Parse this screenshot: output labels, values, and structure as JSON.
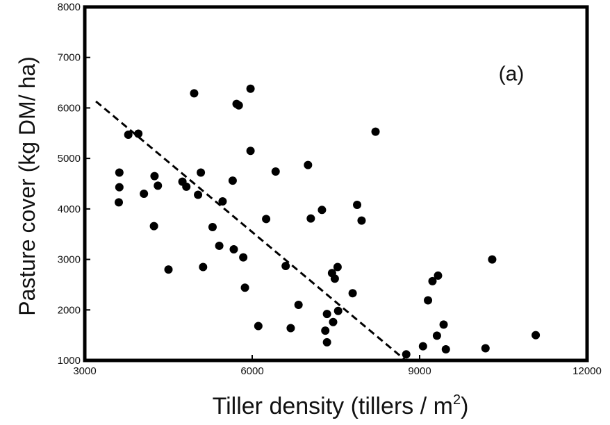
{
  "chart_data": {
    "type": "scatter",
    "panel_label": "(a)",
    "xlabel": "Tiller density (tillers / m",
    "xlabel_superscript": "2",
    "xlabel_suffix": ")",
    "ylabel": "Pasture cover (kg DM/ ha)",
    "xlim": [
      3000,
      12000
    ],
    "ylim": [
      1000,
      8000
    ],
    "x_ticks": [
      3000,
      6000,
      9000,
      12000
    ],
    "y_ticks": [
      1000,
      2000,
      3000,
      4000,
      5000,
      6000,
      7000,
      8000
    ],
    "x_tick_labels": [
      "3000",
      "6000",
      "9000",
      "12000"
    ],
    "y_tick_labels": [
      "1000",
      "2000",
      "3000",
      "4000",
      "5000",
      "6000",
      "7000",
      "8000"
    ],
    "grid": false,
    "points": [
      {
        "x": 3620,
        "y": 4720
      },
      {
        "x": 3620,
        "y": 4430
      },
      {
        "x": 3610,
        "y": 4130
      },
      {
        "x": 3780,
        "y": 5470
      },
      {
        "x": 3960,
        "y": 5490
      },
      {
        "x": 4060,
        "y": 4300
      },
      {
        "x": 4250,
        "y": 4650
      },
      {
        "x": 4310,
        "y": 4460
      },
      {
        "x": 4240,
        "y": 3660
      },
      {
        "x": 4500,
        "y": 2800
      },
      {
        "x": 4750,
        "y": 4540
      },
      {
        "x": 4820,
        "y": 4440
      },
      {
        "x": 4960,
        "y": 6290
      },
      {
        "x": 5030,
        "y": 4280
      },
      {
        "x": 5080,
        "y": 4720
      },
      {
        "x": 5120,
        "y": 2850
      },
      {
        "x": 5290,
        "y": 3640
      },
      {
        "x": 5410,
        "y": 3270
      },
      {
        "x": 5470,
        "y": 4150
      },
      {
        "x": 5650,
        "y": 4560
      },
      {
        "x": 5670,
        "y": 3200
      },
      {
        "x": 5840,
        "y": 3040
      },
      {
        "x": 5870,
        "y": 2440
      },
      {
        "x": 5720,
        "y": 6080
      },
      {
        "x": 5760,
        "y": 6050
      },
      {
        "x": 5970,
        "y": 6380
      },
      {
        "x": 5970,
        "y": 5150
      },
      {
        "x": 6110,
        "y": 1680
      },
      {
        "x": 6250,
        "y": 3800
      },
      {
        "x": 6420,
        "y": 4740
      },
      {
        "x": 6600,
        "y": 2870
      },
      {
        "x": 6690,
        "y": 1640
      },
      {
        "x": 6830,
        "y": 2100
      },
      {
        "x": 7000,
        "y": 4870
      },
      {
        "x": 7050,
        "y": 3810
      },
      {
        "x": 7250,
        "y": 3980
      },
      {
        "x": 7310,
        "y": 1590
      },
      {
        "x": 7340,
        "y": 1360
      },
      {
        "x": 7340,
        "y": 1920
      },
      {
        "x": 7430,
        "y": 2730
      },
      {
        "x": 7450,
        "y": 1760
      },
      {
        "x": 7480,
        "y": 2620
      },
      {
        "x": 7530,
        "y": 2850
      },
      {
        "x": 7540,
        "y": 1980
      },
      {
        "x": 7800,
        "y": 2330
      },
      {
        "x": 7880,
        "y": 4080
      },
      {
        "x": 7960,
        "y": 3770
      },
      {
        "x": 8210,
        "y": 5530
      },
      {
        "x": 8760,
        "y": 1120
      },
      {
        "x": 9060,
        "y": 1280
      },
      {
        "x": 9150,
        "y": 2190
      },
      {
        "x": 9230,
        "y": 2570
      },
      {
        "x": 9310,
        "y": 1490
      },
      {
        "x": 9330,
        "y": 2680
      },
      {
        "x": 9430,
        "y": 1710
      },
      {
        "x": 9470,
        "y": 1220
      },
      {
        "x": 10180,
        "y": 1240
      },
      {
        "x": 10300,
        "y": 3000
      },
      {
        "x": 11080,
        "y": 1500
      }
    ],
    "trend_line": {
      "style": "dashed",
      "from": {
        "x": 3200,
        "y": 6130
      },
      "to": {
        "x": 8750,
        "y": 1000
      }
    },
    "colors": {
      "marks": "#000000",
      "frame": "#000000",
      "background": "#ffffff"
    }
  }
}
